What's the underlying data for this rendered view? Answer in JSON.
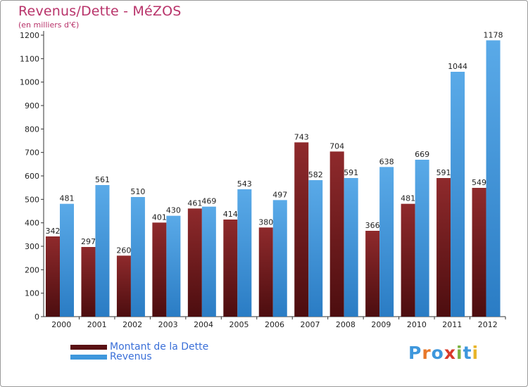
{
  "chart_data": {
    "type": "bar",
    "title": "Revenus/Dette - MéZOS",
    "subtitle": "(en milliers d'€)",
    "categories": [
      "2000",
      "2001",
      "2002",
      "2003",
      "2004",
      "2005",
      "2006",
      "2007",
      "2008",
      "2009",
      "2010",
      "2011",
      "2012"
    ],
    "series": [
      {
        "name": "Montant de la Dette",
        "color": "#7a1f22",
        "values": [
          342,
          297,
          260,
          401,
          461,
          414,
          380,
          743,
          704,
          366,
          481,
          591,
          549
        ]
      },
      {
        "name": "Revenus",
        "color": "#3e97dc",
        "values": [
          481,
          561,
          510,
          430,
          469,
          543,
          497,
          582,
          591,
          638,
          669,
          1044,
          1178
        ]
      }
    ],
    "ylim": [
      0,
      1200
    ],
    "yticks": [
      0,
      100,
      200,
      300,
      400,
      500,
      600,
      700,
      800,
      900,
      1000,
      1100,
      1200
    ],
    "grid": false
  },
  "logo": {
    "text": "Proxiti",
    "colors": [
      "#3e97dc",
      "#e8782a",
      "#3e97dc",
      "#d93b2b",
      "#7cb342",
      "#3e97dc",
      "#e8b52a"
    ]
  }
}
